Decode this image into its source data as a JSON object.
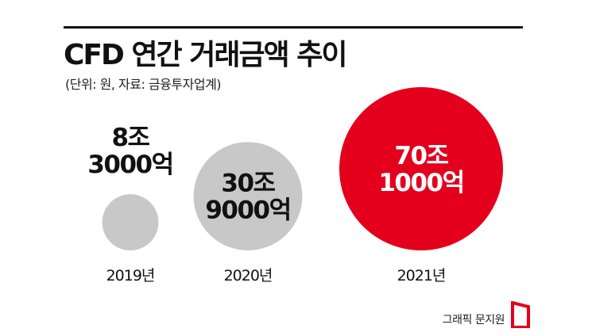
{
  "header": {
    "title": "CFD 연간 거래금액 추이",
    "subtitle": "(단위: 원, 자료: 금융투자업계)"
  },
  "footer": {
    "credit": "그래픽 문지원"
  },
  "colors": {
    "gray_bubble": "#c8c8c8",
    "red_bubble": "#e4001c",
    "text_dark": "#111111",
    "text_light": "#ffffff",
    "logo_red": "#e4001c"
  },
  "chart_data": {
    "type": "bubble",
    "title": "CFD 연간 거래금액 추이",
    "unit": "원",
    "source": "금융투자업계",
    "categories": [
      "2019년",
      "2020년",
      "2021년"
    ],
    "values_eok": [
      83000,
      309000,
      701000
    ],
    "labels": [
      [
        "8조",
        "3000억"
      ],
      [
        "30조",
        "9000억"
      ],
      [
        "70조",
        "1000억"
      ]
    ],
    "bubble_colors": [
      "#c8c8c8",
      "#c8c8c8",
      "#e4001c"
    ],
    "label_colors": [
      "#111111",
      "#111111",
      "#ffffff"
    ],
    "label_placement": [
      "above",
      "inside",
      "inside"
    ]
  }
}
